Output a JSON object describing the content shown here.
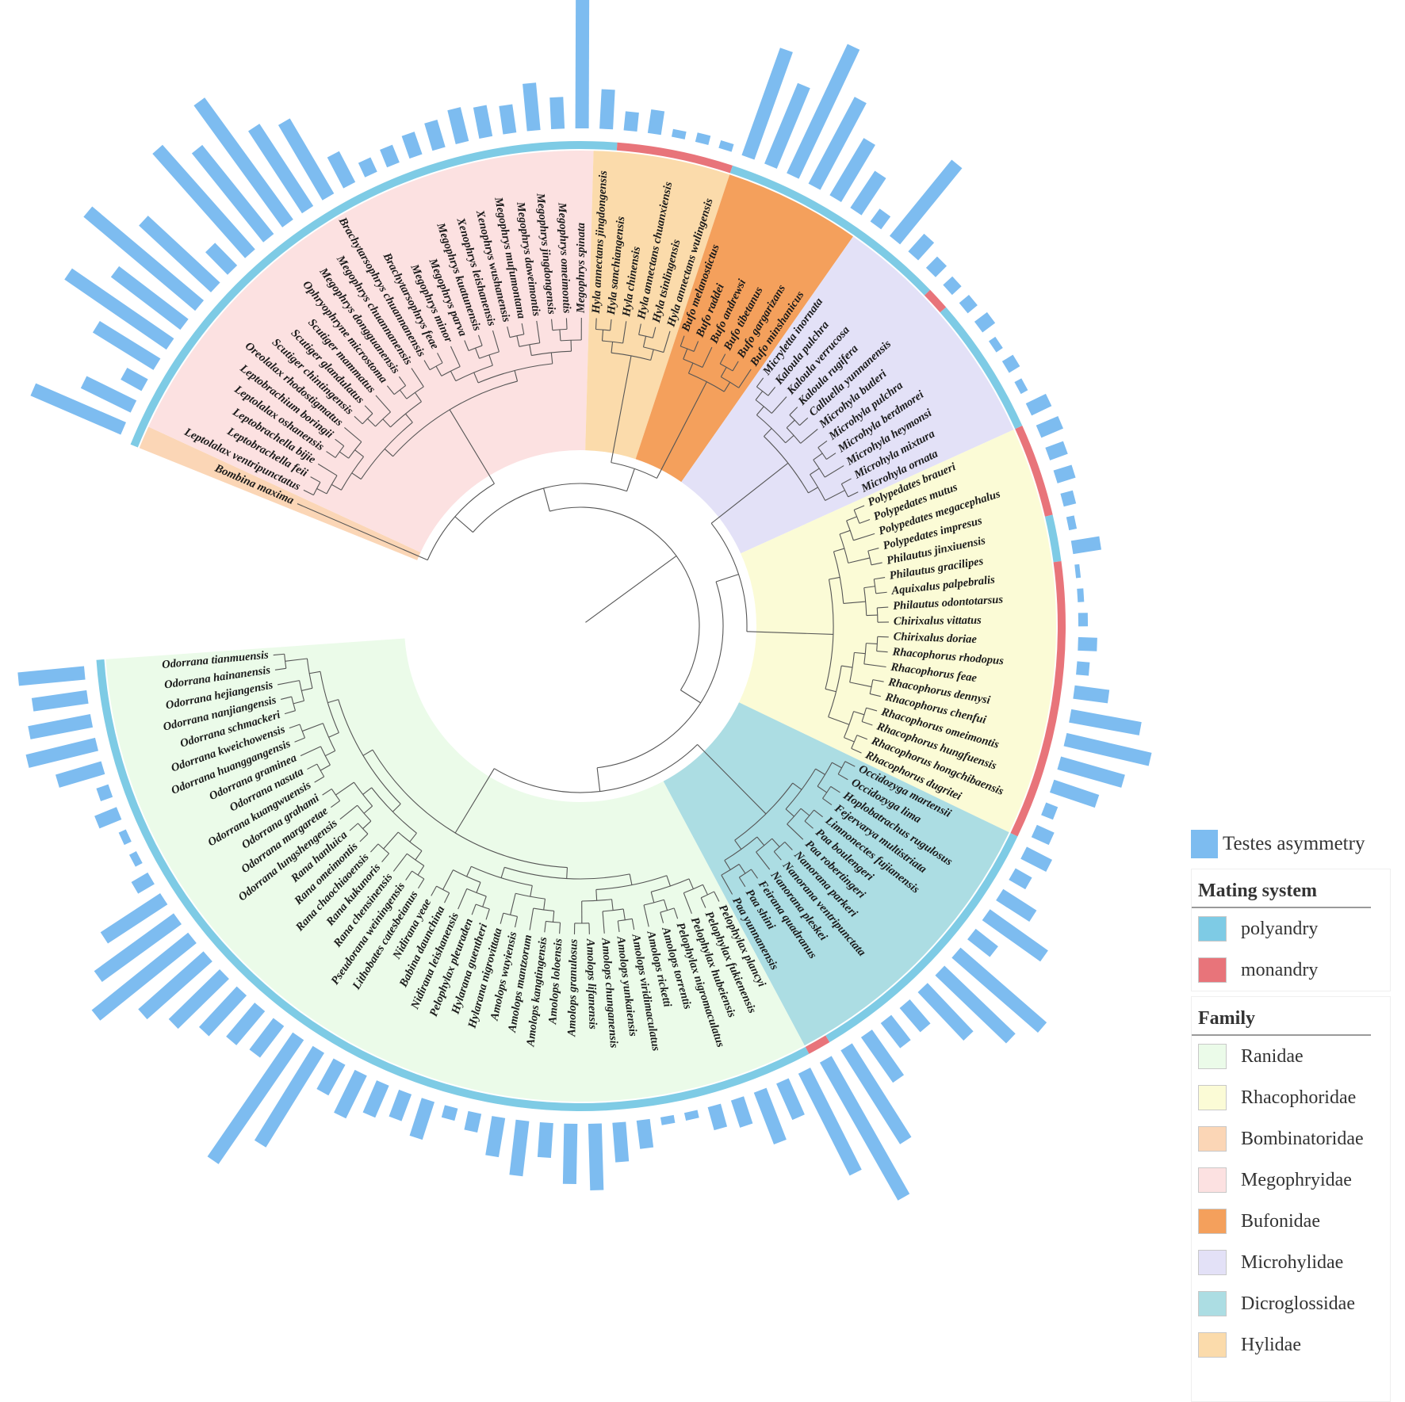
{
  "legend": {
    "testes_label": "Testes asymmetry",
    "mating_title": "Mating system",
    "mating": [
      {
        "label": "polyandry",
        "color": "#7ecbe5"
      },
      {
        "label": "monandry",
        "color": "#e8747a"
      }
    ],
    "family_title": "Family",
    "families": [
      {
        "label": "Ranidae",
        "color": "#ebfbe9"
      },
      {
        "label": "Rhacophoridae",
        "color": "#fbfbd6"
      },
      {
        "label": "Bombinatoridae",
        "color": "#fbd6b6"
      },
      {
        "label": "Megophryidae",
        "color": "#fce1e1"
      },
      {
        "label": "Bufonidae",
        "color": "#f4a05c"
      },
      {
        "label": "Microhylidae",
        "color": "#e3e1f7"
      },
      {
        "label": "Dicroglossidae",
        "color": "#acdde3"
      },
      {
        "label": "Hylidae",
        "color": "#fbdbab"
      }
    ]
  },
  "colors": {
    "bar": "#7dbcf0",
    "branch": "#555555"
  },
  "tree": {
    "species": [
      {
        "name": "Bombina maxima",
        "family": "Bombinatoridae",
        "mating": "polyandry",
        "asym": 0.62
      },
      {
        "name": "Leptolalax ventripunctatus",
        "family": "Megophryidae",
        "mating": "polyandry",
        "asym": 0.35
      },
      {
        "name": "Leptobrachella feii",
        "family": "Megophryidae",
        "mating": "polyandry",
        "asym": 0.15
      },
      {
        "name": "Leptobrachella bijie",
        "family": "Megophryidae",
        "mating": "polyandry",
        "asym": 0.45
      },
      {
        "name": "Leptolalax oshanensis",
        "family": "Megophryidae",
        "mating": "polyandry",
        "asym": 0.78
      },
      {
        "name": "Leptobrachium boringii",
        "family": "Megophryidae",
        "mating": "polyandry",
        "asym": 0.55
      },
      {
        "name": "Oreolalax rhodostigmatus",
        "family": "Megophryidae",
        "mating": "polyandry",
        "asym": 0.92
      },
      {
        "name": "Scutiger chintingensis",
        "family": "Megophryidae",
        "mating": "polyandry",
        "asym": 0.62
      },
      {
        "name": "Scutiger glandulatus",
        "family": "Megophryidae",
        "mating": "polyandry",
        "asym": 0.2
      },
      {
        "name": "Scutiger mammatus",
        "family": "Megophryidae",
        "mating": "polyandry",
        "asym": 0.88
      },
      {
        "name": "Ophryophryne microstoma",
        "family": "Megophryidae",
        "mating": "polyandry",
        "asym": 0.72
      },
      {
        "name": "Megophrys dongguanensis",
        "family": "Megophryidae",
        "mating": "polyandry",
        "asym": 0.95
      },
      {
        "name": "Megophrys chuannanensis",
        "family": "Megophryidae",
        "mating": "polyandry",
        "asym": 0.62
      },
      {
        "name": "Brachytarsophrys chuannanensis",
        "family": "Megophryidae",
        "mating": "polyandry",
        "asym": 0.55
      },
      {
        "name": "Brachytarsophrys feae",
        "family": "Megophryidae",
        "mating": "polyandry",
        "asym": 0.22
      },
      {
        "name": "Megophrys minor",
        "family": "Megophryidae",
        "mating": "polyandry",
        "asym": 0.1
      },
      {
        "name": "Megophrys parva",
        "family": "Megophryidae",
        "mating": "polyandry",
        "asym": 0.12
      },
      {
        "name": "Megophrys kuatunensis",
        "family": "Megophryidae",
        "mating": "polyandry",
        "asym": 0.15
      },
      {
        "name": "Xenophrys leishanensis",
        "family": "Megophryidae",
        "mating": "polyandry",
        "asym": 0.18
      },
      {
        "name": "Xenophrys wushanensis",
        "family": "Megophryidae",
        "mating": "polyandry",
        "asym": 0.22
      },
      {
        "name": "Megophrys mufumontana",
        "family": "Megophryidae",
        "mating": "polyandry",
        "asym": 0.2
      },
      {
        "name": "Megophrys daweimontis",
        "family": "Megophryidae",
        "mating": "polyandry",
        "asym": 0.18
      },
      {
        "name": "Megophrys jingdongensis",
        "family": "Megophryidae",
        "mating": "polyandry",
        "asym": 0.3
      },
      {
        "name": "Megophrys omeimontis",
        "family": "Megophryidae",
        "mating": "polyandry",
        "asym": 0.2
      },
      {
        "name": "Megophrys spinata",
        "family": "Megophryidae",
        "mating": "polyandry",
        "asym": 1.0
      },
      {
        "name": "Hyla annectans jingdongensis",
        "family": "Hylidae",
        "mating": "polyandry",
        "asym": 0.25
      },
      {
        "name": "Hyla sanchiangensis",
        "family": "Hylidae",
        "mating": "monandry",
        "asym": 0.12
      },
      {
        "name": "Hyla chinensis",
        "family": "Hylidae",
        "mating": "monandry",
        "asym": 0.15
      },
      {
        "name": "Hyla annectans chuanxiensis",
        "family": "Hylidae",
        "mating": "monandry",
        "asym": 0.05
      },
      {
        "name": "Hyla tsinlingensis",
        "family": "Hylidae",
        "mating": "monandry",
        "asym": 0.06
      },
      {
        "name": "Hyla annectans wulingensis",
        "family": "Hylidae",
        "mating": "monandry",
        "asym": 0.05
      },
      {
        "name": "Bufo melanostictus",
        "family": "Bufonidae",
        "mating": "polyandry",
        "asym": 0.72
      },
      {
        "name": "Bufo raddei",
        "family": "Bufonidae",
        "mating": "polyandry",
        "asym": 0.55
      },
      {
        "name": "Bufo andrewsi",
        "family": "Bufonidae",
        "mating": "polyandry",
        "asym": 0.9
      },
      {
        "name": "Bufo tibetanus",
        "family": "Bufonidae",
        "mating": "polyandry",
        "asym": 0.62
      },
      {
        "name": "Bufo gargarizans",
        "family": "Bufonidae",
        "mating": "polyandry",
        "asym": 0.42
      },
      {
        "name": "Bufo minshanicus",
        "family": "Bufonidae",
        "mating": "polyandry",
        "asym": 0.28
      },
      {
        "name": "Micryletta inornata",
        "family": "Microhylidae",
        "mating": "polyandry",
        "asym": 0.1
      },
      {
        "name": "Kaloula pulchra",
        "family": "Microhylidae",
        "mating": "polyandry",
        "asym": 0.62
      },
      {
        "name": "Kaloula verrucosa",
        "family": "Microhylidae",
        "mating": "polyandry",
        "asym": 0.15
      },
      {
        "name": "Kaloula rugifera",
        "family": "Microhylidae",
        "mating": "polyandry",
        "asym": 0.1
      },
      {
        "name": "Calluella yunnanensis",
        "family": "Microhylidae",
        "mating": "monandry",
        "asym": 0.08
      },
      {
        "name": "Microhyla butleri",
        "family": "Microhylidae",
        "mating": "polyandry",
        "asym": 0.08
      },
      {
        "name": "Microhyla pulchra",
        "family": "Microhylidae",
        "mating": "polyandry",
        "asym": 0.1
      },
      {
        "name": "Microhyla berdmorei",
        "family": "Microhylidae",
        "mating": "polyandry",
        "asym": 0.05
      },
      {
        "name": "Microhyla heymonsi",
        "family": "Microhylidae",
        "mating": "polyandry",
        "asym": 0.08
      },
      {
        "name": "Microhyla mixtura",
        "family": "Microhylidae",
        "mating": "polyandry",
        "asym": 0.05
      },
      {
        "name": "Microhyla ornata",
        "family": "Microhylidae",
        "mating": "polyandry",
        "asym": 0.14
      },
      {
        "name": "Polypedates braueri",
        "family": "Rhacophoridae",
        "mating": "monandry",
        "asym": 0.15
      },
      {
        "name": "Polypedates mutus",
        "family": "Rhacophoridae",
        "mating": "monandry",
        "asym": 0.12
      },
      {
        "name": "Polypedates megacephalus",
        "family": "Rhacophoridae",
        "mating": "monandry",
        "asym": 0.12
      },
      {
        "name": "Polypedates impresus",
        "family": "Rhacophoridae",
        "mating": "monandry",
        "asym": 0.08
      },
      {
        "name": "Philautus jinxiuensis",
        "family": "Rhacophoridae",
        "mating": "polyandry",
        "asym": 0.05
      },
      {
        "name": "Philautus gracilipes",
        "family": "Rhacophoridae",
        "mating": "polyandry",
        "asym": 0.18
      },
      {
        "name": "Aquixalus palpebralis",
        "family": "Rhacophoridae",
        "mating": "monandry",
        "asym": 0.03
      },
      {
        "name": "Philautus odontotarsus",
        "family": "Rhacophoridae",
        "mating": "monandry",
        "asym": 0.04
      },
      {
        "name": "Chirixalus vittatus",
        "family": "Rhacophoridae",
        "mating": "monandry",
        "asym": 0.06
      },
      {
        "name": "Chirixalus doriae",
        "family": "Rhacophoridae",
        "mating": "monandry",
        "asym": 0.12
      },
      {
        "name": "Rhacophorus rhodopus",
        "family": "Rhacophoridae",
        "mating": "monandry",
        "asym": 0.08
      },
      {
        "name": "Rhacophorus feae",
        "family": "Rhacophoridae",
        "mating": "monandry",
        "asym": 0.22
      },
      {
        "name": "Rhacophorus dennysi",
        "family": "Rhacophoridae",
        "mating": "monandry",
        "asym": 0.45
      },
      {
        "name": "Rhacophorus chenfui",
        "family": "Rhacophoridae",
        "mating": "monandry",
        "asym": 0.55
      },
      {
        "name": "Rhacophorus omeimontis",
        "family": "Rhacophoridae",
        "mating": "monandry",
        "asym": 0.42
      },
      {
        "name": "Rhacophorus hungfuensis",
        "family": "Rhacophoridae",
        "mating": "monandry",
        "asym": 0.3
      },
      {
        "name": "Rhacophorus hongchibaensis",
        "family": "Rhacophoridae",
        "mating": "monandry",
        "asym": 0.08
      },
      {
        "name": "Rhacophorus dugritei",
        "family": "Rhacophoridae",
        "mating": "monandry",
        "asym": 0.12
      },
      {
        "name": "Occidozyga martensii",
        "family": "Dicroglossidae",
        "mating": "polyandry",
        "asym": 0.18
      },
      {
        "name": "Occidozyga lima",
        "family": "Dicroglossidae",
        "mating": "polyandry",
        "asym": 0.12
      },
      {
        "name": "Hoplobatrachus rugulosus",
        "family": "Dicroglossidae",
        "mating": "polyandry",
        "asym": 0.25
      },
      {
        "name": "Fejervarya multistriata",
        "family": "Dicroglossidae",
        "mating": "polyandry",
        "asym": 0.45
      },
      {
        "name": "Limnonectes fujianensis",
        "family": "Dicroglossidae",
        "mating": "polyandry",
        "asym": 0.18
      },
      {
        "name": "Paa boulengeri",
        "family": "Dicroglossidae",
        "mating": "polyandry",
        "asym": 0.72
      },
      {
        "name": "Paa robertingeri",
        "family": "Dicroglossidae",
        "mating": "polyandry",
        "asym": 0.62
      },
      {
        "name": "Nanorana parkeri",
        "family": "Dicroglossidae",
        "mating": "polyandry",
        "asym": 0.42
      },
      {
        "name": "Nanorana ventripunctata",
        "family": "Dicroglossidae",
        "mating": "polyandry",
        "asym": 0.2
      },
      {
        "name": "Nanorana pleskei",
        "family": "Dicroglossidae",
        "mating": "polyandry",
        "asym": 0.2
      },
      {
        "name": "Feirana quadranus",
        "family": "Dicroglossidae",
        "mating": "polyandry",
        "asym": 0.35
      },
      {
        "name": "Paa shini",
        "family": "Dicroglossidae",
        "mating": "polyandry",
        "asym": 0.7
      },
      {
        "name": "Paa yunnanensis",
        "family": "Dicroglossidae",
        "mating": "monandry",
        "asym": 1.0
      },
      {
        "name": "Pelophylax plancyi",
        "family": "Ranidae",
        "mating": "polyandry",
        "asym": 0.72
      },
      {
        "name": "Pelophylax fukienensis",
        "family": "Ranidae",
        "mating": "polyandry",
        "asym": 0.25
      },
      {
        "name": "Pelophylax hubeiensis",
        "family": "Ranidae",
        "mating": "polyandry",
        "asym": 0.35
      },
      {
        "name": "Pelophylax nigromaculatus",
        "family": "Ranidae",
        "mating": "polyandry",
        "asym": 0.18
      },
      {
        "name": "Amolops torrentis",
        "family": "Ranidae",
        "mating": "polyandry",
        "asym": 0.15
      },
      {
        "name": "Amolops ricketti",
        "family": "Ranidae",
        "mating": "polyandry",
        "asym": 0.05
      },
      {
        "name": "Amolops viridimaculatus",
        "family": "Ranidae",
        "mating": "polyandry",
        "asym": 0.05
      },
      {
        "name": "Amolops yunkaiensis",
        "family": "Ranidae",
        "mating": "polyandry",
        "asym": 0.18
      },
      {
        "name": "Amolops chunganensis",
        "family": "Ranidae",
        "mating": "polyandry",
        "asym": 0.25
      },
      {
        "name": "Amolops lifanensis",
        "family": "Ranidae",
        "mating": "polyandry",
        "asym": 0.42
      },
      {
        "name": "Amolops granulosus",
        "family": "Ranidae",
        "mating": "polyandry",
        "asym": 0.38
      },
      {
        "name": "Amolops loloensis",
        "family": "Ranidae",
        "mating": "polyandry",
        "asym": 0.22
      },
      {
        "name": "Amolops kangtingensis",
        "family": "Ranidae",
        "mating": "polyandry",
        "asym": 0.35
      },
      {
        "name": "Amolops mantzorum",
        "family": "Ranidae",
        "mating": "polyandry",
        "asym": 0.25
      },
      {
        "name": "Amolops wuyiensis",
        "family": "Ranidae",
        "mating": "polyandry",
        "asym": 0.12
      },
      {
        "name": "Hylarana nigrovittata",
        "family": "Ranidae",
        "mating": "polyandry",
        "asym": 0.08
      },
      {
        "name": "Hylarana guentheri",
        "family": "Ranidae",
        "mating": "polyandry",
        "asym": 0.25
      },
      {
        "name": "Pelophylax pleuraden",
        "family": "Ranidae",
        "mating": "polyandry",
        "asym": 0.18
      },
      {
        "name": "Nidirana leishanensis",
        "family": "Ranidae",
        "mating": "polyandry",
        "asym": 0.22
      },
      {
        "name": "Babina daunchina",
        "family": "Ranidae",
        "mating": "polyandry",
        "asym": 0.3
      },
      {
        "name": "Nidirana yeae",
        "family": "Ranidae",
        "mating": "polyandry",
        "asym": 0.22
      },
      {
        "name": "Lithobates catesbeianus",
        "family": "Ranidae",
        "mating": "polyandry",
        "asym": 0.7
      },
      {
        "name": "Pseudorana weiningensis",
        "family": "Ranidae",
        "mating": "polyandry",
        "asym": 0.95
      },
      {
        "name": "Rana chensinensis",
        "family": "Ranidae",
        "mating": "polyandry",
        "asym": 0.25
      },
      {
        "name": "Rana kukunoris",
        "family": "Ranidae",
        "mating": "polyandry",
        "asym": 0.28
      },
      {
        "name": "Rana chaochiaoensis",
        "family": "Ranidae",
        "mating": "polyandry",
        "asym": 0.35
      },
      {
        "name": "Rana omeimontis",
        "family": "Ranidae",
        "mating": "polyandry",
        "asym": 0.45
      },
      {
        "name": "Rana hanluica",
        "family": "Ranidae",
        "mating": "polyandry",
        "asym": 0.55
      },
      {
        "name": "Odorrana lungshengensis",
        "family": "Ranidae",
        "mating": "polyandry",
        "asym": 0.78
      },
      {
        "name": "Odorrana margaretae",
        "family": "Ranidae",
        "mating": "polyandry",
        "asym": 0.62
      },
      {
        "name": "Odorrana grahami",
        "family": "Ranidae",
        "mating": "polyandry",
        "asym": 0.45
      },
      {
        "name": "Odorrana kuangwuensis",
        "family": "Ranidae",
        "mating": "polyandry",
        "asym": 0.12
      },
      {
        "name": "Odorrana nasuta",
        "family": "Ranidae",
        "mating": "polyandry",
        "asym": 0.05
      },
      {
        "name": "Odorrana graminea",
        "family": "Ranidae",
        "mating": "polyandry",
        "asym": 0.05
      },
      {
        "name": "Odorrana huanggangensis",
        "family": "Ranidae",
        "mating": "polyandry",
        "asym": 0.15
      },
      {
        "name": "Odorrana kweichowensis",
        "family": "Ranidae",
        "mating": "polyandry",
        "asym": 0.08
      },
      {
        "name": "Odorrana schmackeri",
        "family": "Ranidae",
        "mating": "polyandry",
        "asym": 0.3
      },
      {
        "name": "Odorrana nanjiangensis",
        "family": "Ranidae",
        "mating": "polyandry",
        "asym": 0.45
      },
      {
        "name": "Odorrana hejiangensis",
        "family": "Ranidae",
        "mating": "polyandry",
        "asym": 0.4
      },
      {
        "name": "Odorrana hainanensis",
        "family": "Ranidae",
        "mating": "polyandry",
        "asym": 0.35
      },
      {
        "name": "Odorrana tianmuensis",
        "family": "Ranidae",
        "mating": "polyandry",
        "asym": 0.42
      }
    ]
  }
}
